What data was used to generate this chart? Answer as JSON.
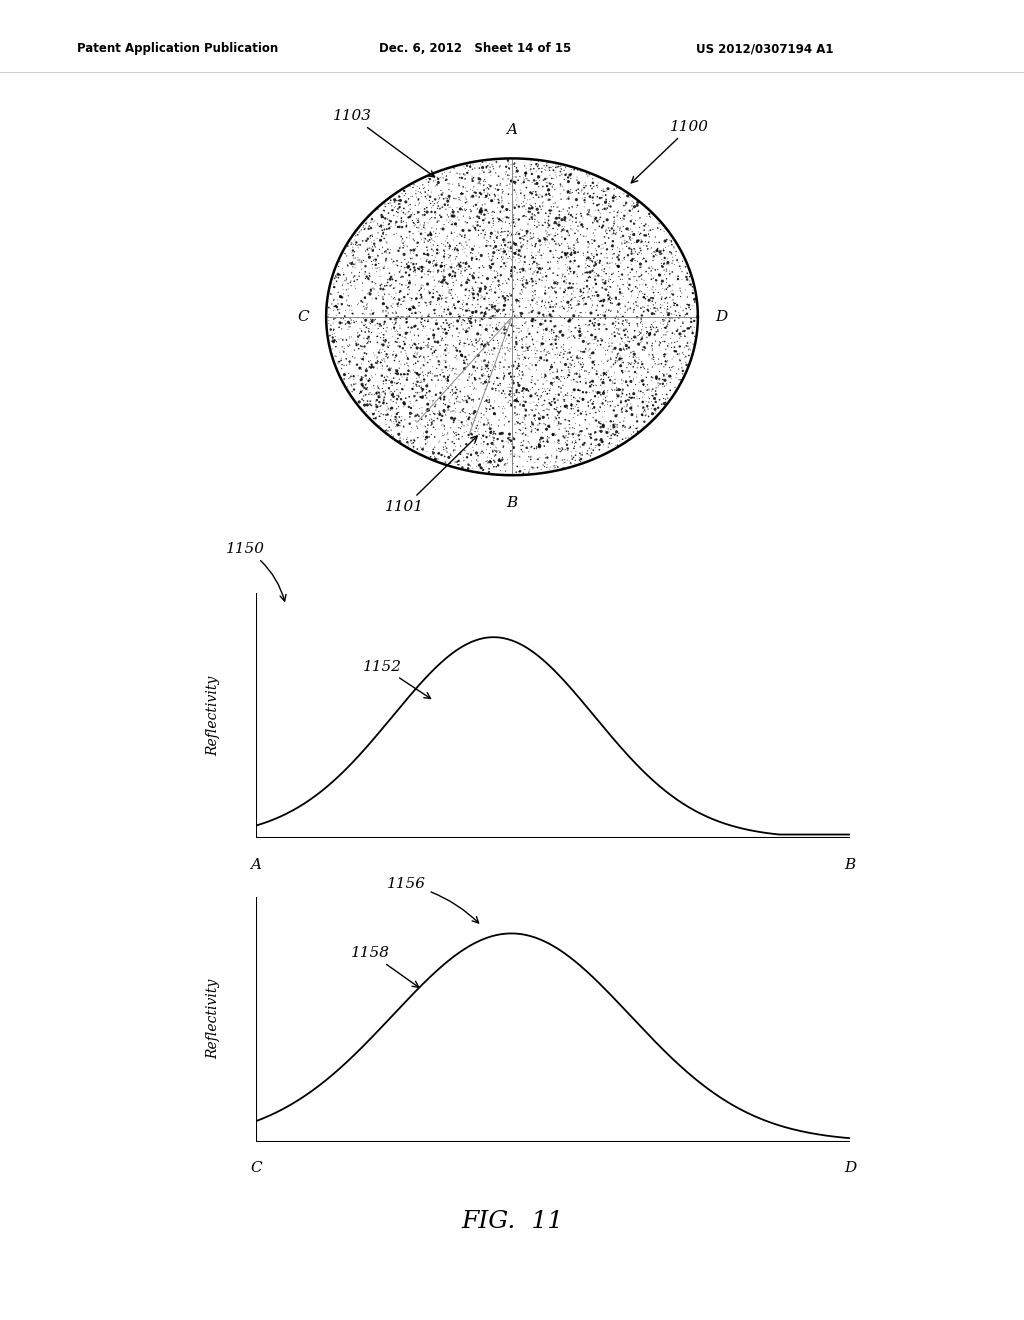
{
  "header_left": "Patent Application Publication",
  "header_mid": "Dec. 6, 2012   Sheet 14 of 15",
  "header_right": "US 2012/0307194 A1",
  "fig_label": "FIG.  11",
  "ref_1100": "1100",
  "ref_1101": "1101",
  "ref_1103": "1103",
  "ref_1150": "1150",
  "ref_1152": "1152",
  "ref_1156": "1156",
  "ref_1158": "1158",
  "graph1_xlabel_left": "A",
  "graph1_xlabel_right": "B",
  "graph1_ylabel": "Reflectivity",
  "graph2_xlabel_left": "C",
  "graph2_xlabel_right": "D",
  "graph2_ylabel": "Reflectivity",
  "ellipse_label_A": "A",
  "ellipse_label_B": "B",
  "ellipse_label_C": "C",
  "ellipse_label_D": "D",
  "bg_color": "#ffffff",
  "line_color": "#000000"
}
